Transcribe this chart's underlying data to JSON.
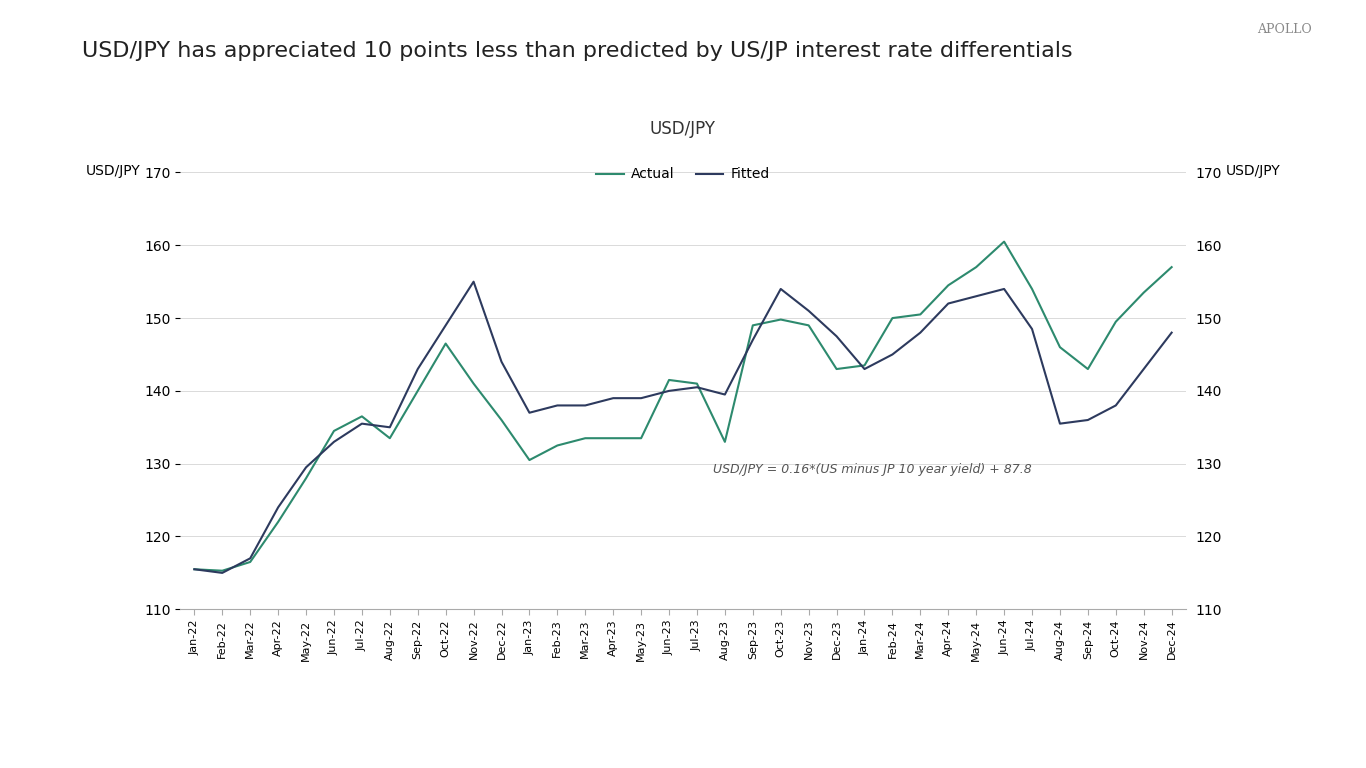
{
  "title": "USD/JPY has appreciated 10 points less than predicted by US/JP interest rate differentials",
  "chart_title": "USD/JPY",
  "watermark": "APOLLO",
  "ylabel_left": "USD/JPY",
  "ylabel_right": "USD/JPY",
  "equation_text": "USD/JPY = 0.16*(US minus JP 10 year yield) + 87.8",
  "ylim": [
    110,
    170
  ],
  "yticks": [
    110,
    120,
    130,
    140,
    150,
    160,
    170
  ],
  "actual_color": "#2d8a6e",
  "fitted_color": "#2d3a5e",
  "background_color": "#ffffff",
  "legend_actual": "Actual",
  "legend_fitted": "Fitted",
  "x_labels": [
    "Jan-22",
    "Feb-22",
    "Mar-22",
    "Apr-22",
    "May-22",
    "Jun-22",
    "Jul-22",
    "Aug-22",
    "Sep-22",
    "Oct-22",
    "Nov-22",
    "Dec-22",
    "Jan-23",
    "Feb-23",
    "Mar-23",
    "Apr-23",
    "May-23",
    "Jun-23",
    "Jul-23",
    "Aug-23",
    "Sep-23",
    "Oct-23",
    "Nov-23",
    "Dec-23",
    "Jan-24",
    "Feb-24",
    "Mar-24",
    "Apr-24",
    "May-24",
    "Jun-24",
    "Jul-24",
    "Aug-24",
    "Sep-24",
    "Oct-24",
    "Nov-24",
    "Dec-24"
  ],
  "actual_values": [
    115.5,
    115.3,
    116.5,
    122.0,
    128.0,
    134.5,
    136.5,
    133.5,
    140.0,
    146.5,
    141.0,
    136.0,
    130.5,
    132.5,
    133.5,
    133.5,
    133.5,
    141.5,
    141.0,
    133.0,
    149.0,
    149.8,
    149.0,
    143.0,
    143.5,
    150.0,
    150.5,
    154.5,
    157.0,
    160.5,
    154.0,
    146.0,
    143.0,
    149.5,
    153.5,
    157.0
  ],
  "fitted_values": [
    115.5,
    115.0,
    117.0,
    124.0,
    129.5,
    133.0,
    135.5,
    135.0,
    143.0,
    149.0,
    155.0,
    144.0,
    137.0,
    138.0,
    138.0,
    139.0,
    139.0,
    140.0,
    140.5,
    139.5,
    147.0,
    154.0,
    151.0,
    147.5,
    143.0,
    145.0,
    148.0,
    152.0,
    153.0,
    154.0,
    148.5,
    135.5,
    136.0,
    138.0,
    143.0,
    148.0
  ]
}
